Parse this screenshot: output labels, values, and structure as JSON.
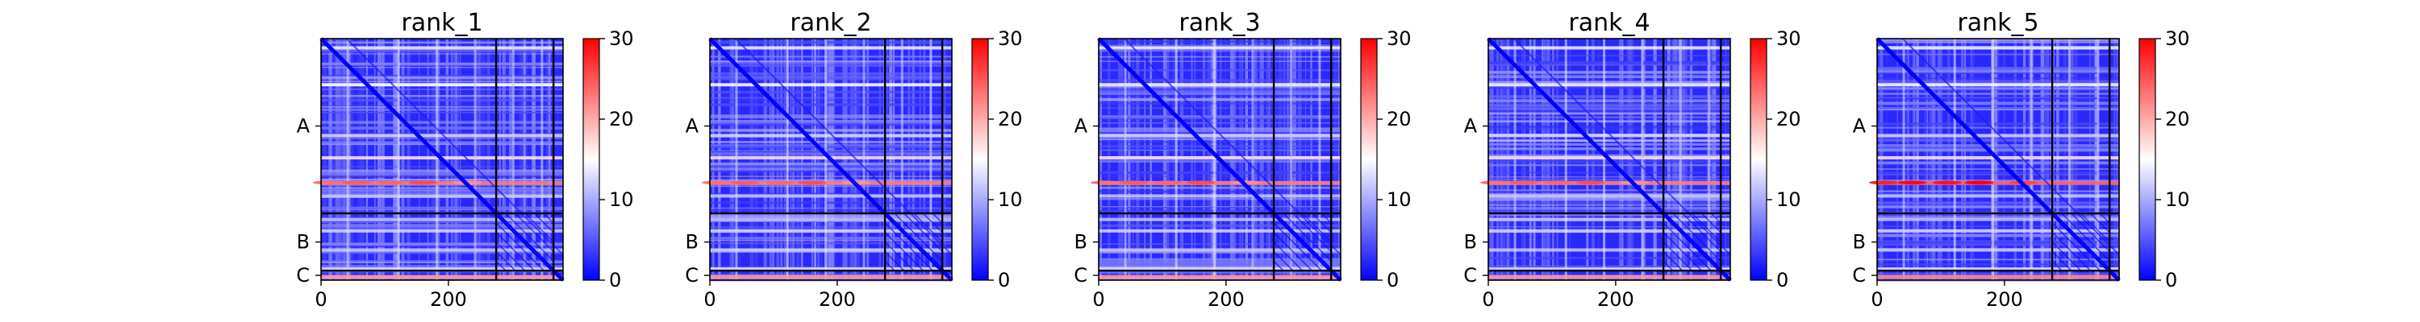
{
  "chart_data": [
    {
      "type": "heatmap",
      "title": "rank_1",
      "xlim": [
        0,
        380
      ],
      "x_ticks": [
        0,
        200
      ],
      "y_tick_labels": [
        "A",
        "B",
        "C"
      ],
      "colorbar": {
        "min": 0,
        "max": 30,
        "ticks": [
          0,
          10,
          20,
          30
        ],
        "colors": [
          "#0000ff",
          "#ffffff",
          "#ff0000"
        ]
      },
      "chain_boundaries": [
        275,
        365
      ],
      "bright_row_intensity": 1.0
    },
    {
      "type": "heatmap",
      "title": "rank_2",
      "xlim": [
        0,
        380
      ],
      "x_ticks": [
        0,
        200
      ],
      "y_tick_labels": [
        "A",
        "B",
        "C"
      ],
      "colorbar": {
        "min": 0,
        "max": 30,
        "ticks": [
          0,
          10,
          20,
          30
        ],
        "colors": [
          "#0000ff",
          "#ffffff",
          "#ff0000"
        ]
      },
      "chain_boundaries": [
        275,
        365
      ],
      "bright_row_intensity": 1.0
    },
    {
      "type": "heatmap",
      "title": "rank_3",
      "xlim": [
        0,
        380
      ],
      "x_ticks": [
        0,
        200
      ],
      "y_tick_labels": [
        "A",
        "B",
        "C"
      ],
      "colorbar": {
        "min": 0,
        "max": 30,
        "ticks": [
          0,
          10,
          20,
          30
        ],
        "colors": [
          "#0000ff",
          "#ffffff",
          "#ff0000"
        ]
      },
      "chain_boundaries": [
        275,
        365
      ],
      "bright_row_intensity": 1.0
    },
    {
      "type": "heatmap",
      "title": "rank_4",
      "xlim": [
        0,
        380
      ],
      "x_ticks": [
        0,
        200
      ],
      "y_tick_labels": [
        "A",
        "B",
        "C"
      ],
      "colorbar": {
        "min": 0,
        "max": 30,
        "ticks": [
          0,
          10,
          20,
          30
        ],
        "colors": [
          "#0000ff",
          "#ffffff",
          "#ff0000"
        ]
      },
      "chain_boundaries": [
        275,
        365
      ],
      "bright_row_intensity": 1.0
    },
    {
      "type": "heatmap",
      "title": "rank_5",
      "xlim": [
        0,
        380
      ],
      "x_ticks": [
        0,
        200
      ],
      "y_tick_labels": [
        "A",
        "B",
        "C"
      ],
      "colorbar": {
        "min": 0,
        "max": 30,
        "ticks": [
          0,
          10,
          20,
          30
        ],
        "colors": [
          "#0000ff",
          "#ffffff",
          "#ff0000"
        ]
      },
      "chain_boundaries": [
        275,
        365
      ],
      "bright_row_intensity": 1.2
    }
  ]
}
